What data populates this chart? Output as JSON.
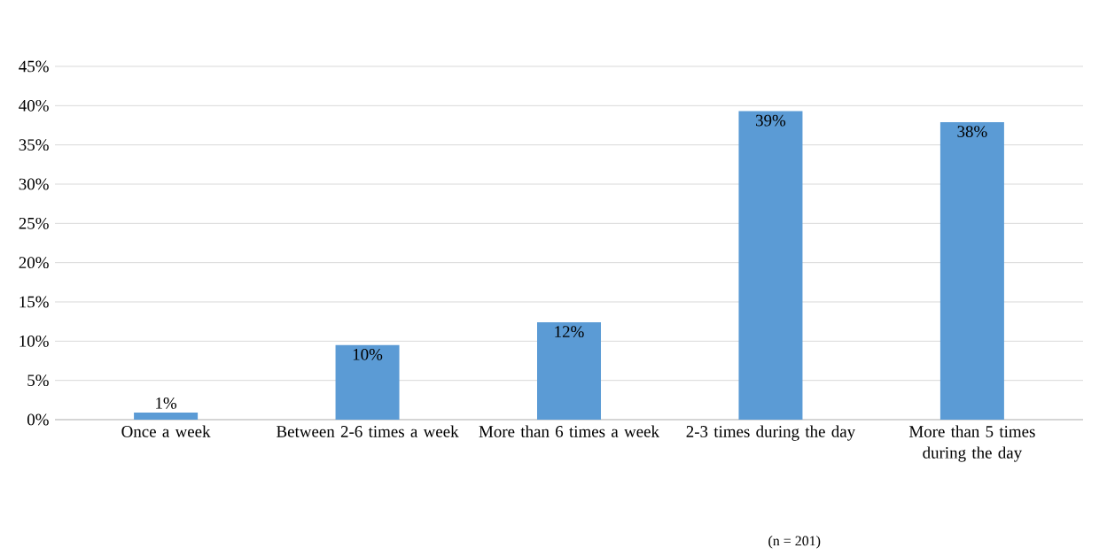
{
  "chart_data": {
    "type": "bar",
    "categories": [
      "Once a week",
      "Between 2-6 times a week",
      "More than 6 times a week",
      "2-3 times during the day",
      "More than 5 times during the day"
    ],
    "values": [
      0.9,
      9.5,
      12.4,
      39.3,
      37.9
    ],
    "value_labels": [
      "1%",
      "10%",
      "12%",
      "39%",
      "38%"
    ],
    "color": "#5b9bd5",
    "ylim": [
      0,
      45
    ],
    "yticks": [
      {
        "value": 0,
        "label": "0%"
      },
      {
        "value": 5,
        "label": "5%"
      },
      {
        "value": 10,
        "label": "10%"
      },
      {
        "value": 15,
        "label": "15%"
      },
      {
        "value": 20,
        "label": "20%"
      },
      {
        "value": 25,
        "label": "25%"
      },
      {
        "value": 30,
        "label": "30%"
      },
      {
        "value": 35,
        "label": "35%"
      },
      {
        "value": 40,
        "label": "40%"
      },
      {
        "value": 45,
        "label": "45%"
      }
    ],
    "grid": "y",
    "annotations": [
      "(n = 201)"
    ]
  }
}
